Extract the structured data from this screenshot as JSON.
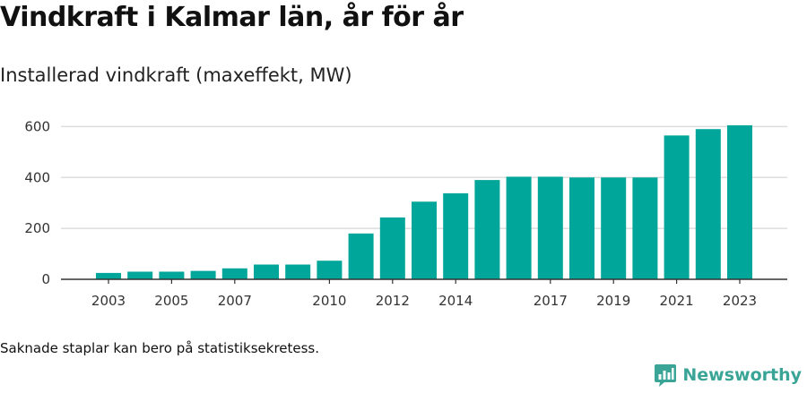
{
  "title": "Vindkraft i Kalmar län, år för år",
  "subtitle": "Installerad vindkraft (maxeffekt, MW)",
  "footnote": "Saknade staplar kan bero på statistiksekretess.",
  "brand": {
    "name": "Newsworthy",
    "color": "#3aa597",
    "logo_icon": "bar-chart-logo-icon"
  },
  "colors": {
    "bar": "#00a69a",
    "grid": "#dddddd",
    "axis": "#333333"
  },
  "chart_data": {
    "type": "bar",
    "categories": [
      "2003",
      "2004",
      "2005",
      "2006",
      "2007",
      "2008",
      "2009",
      "2010",
      "2011",
      "2012",
      "2013",
      "2014",
      "2015",
      "2016",
      "2017",
      "2018",
      "2019",
      "2020",
      "2021",
      "2022",
      "2023"
    ],
    "values": [
      25,
      30,
      30,
      33,
      43,
      58,
      58,
      73,
      180,
      243,
      305,
      338,
      390,
      403,
      403,
      400,
      400,
      400,
      565,
      590,
      605
    ],
    "x_tick_labels": [
      "2003",
      "2005",
      "2007",
      "2010",
      "2012",
      "2014",
      "2017",
      "2019",
      "2021",
      "2023"
    ],
    "y_ticks": [
      0,
      200,
      400,
      600
    ],
    "ylim": [
      0,
      640
    ],
    "grid": true,
    "legend": "none"
  }
}
